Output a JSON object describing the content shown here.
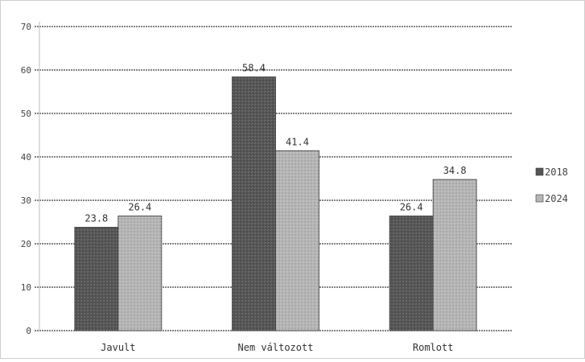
{
  "chart_data": {
    "type": "bar",
    "title": "",
    "xlabel": "",
    "ylabel": "",
    "categories": [
      "Javult",
      "Nem változott",
      "Romlott"
    ],
    "series": [
      {
        "name": "2018",
        "values": [
          23.8,
          58.4,
          26.4
        ],
        "color": "#555555"
      },
      {
        "name": "2024",
        "values": [
          26.4,
          41.4,
          34.8
        ],
        "color": "#b5b5b5"
      }
    ],
    "ylim": [
      0,
      70
    ],
    "yticks": [
      0,
      10,
      20,
      30,
      40,
      50,
      60,
      70
    ],
    "grid": true,
    "legend": "right"
  }
}
